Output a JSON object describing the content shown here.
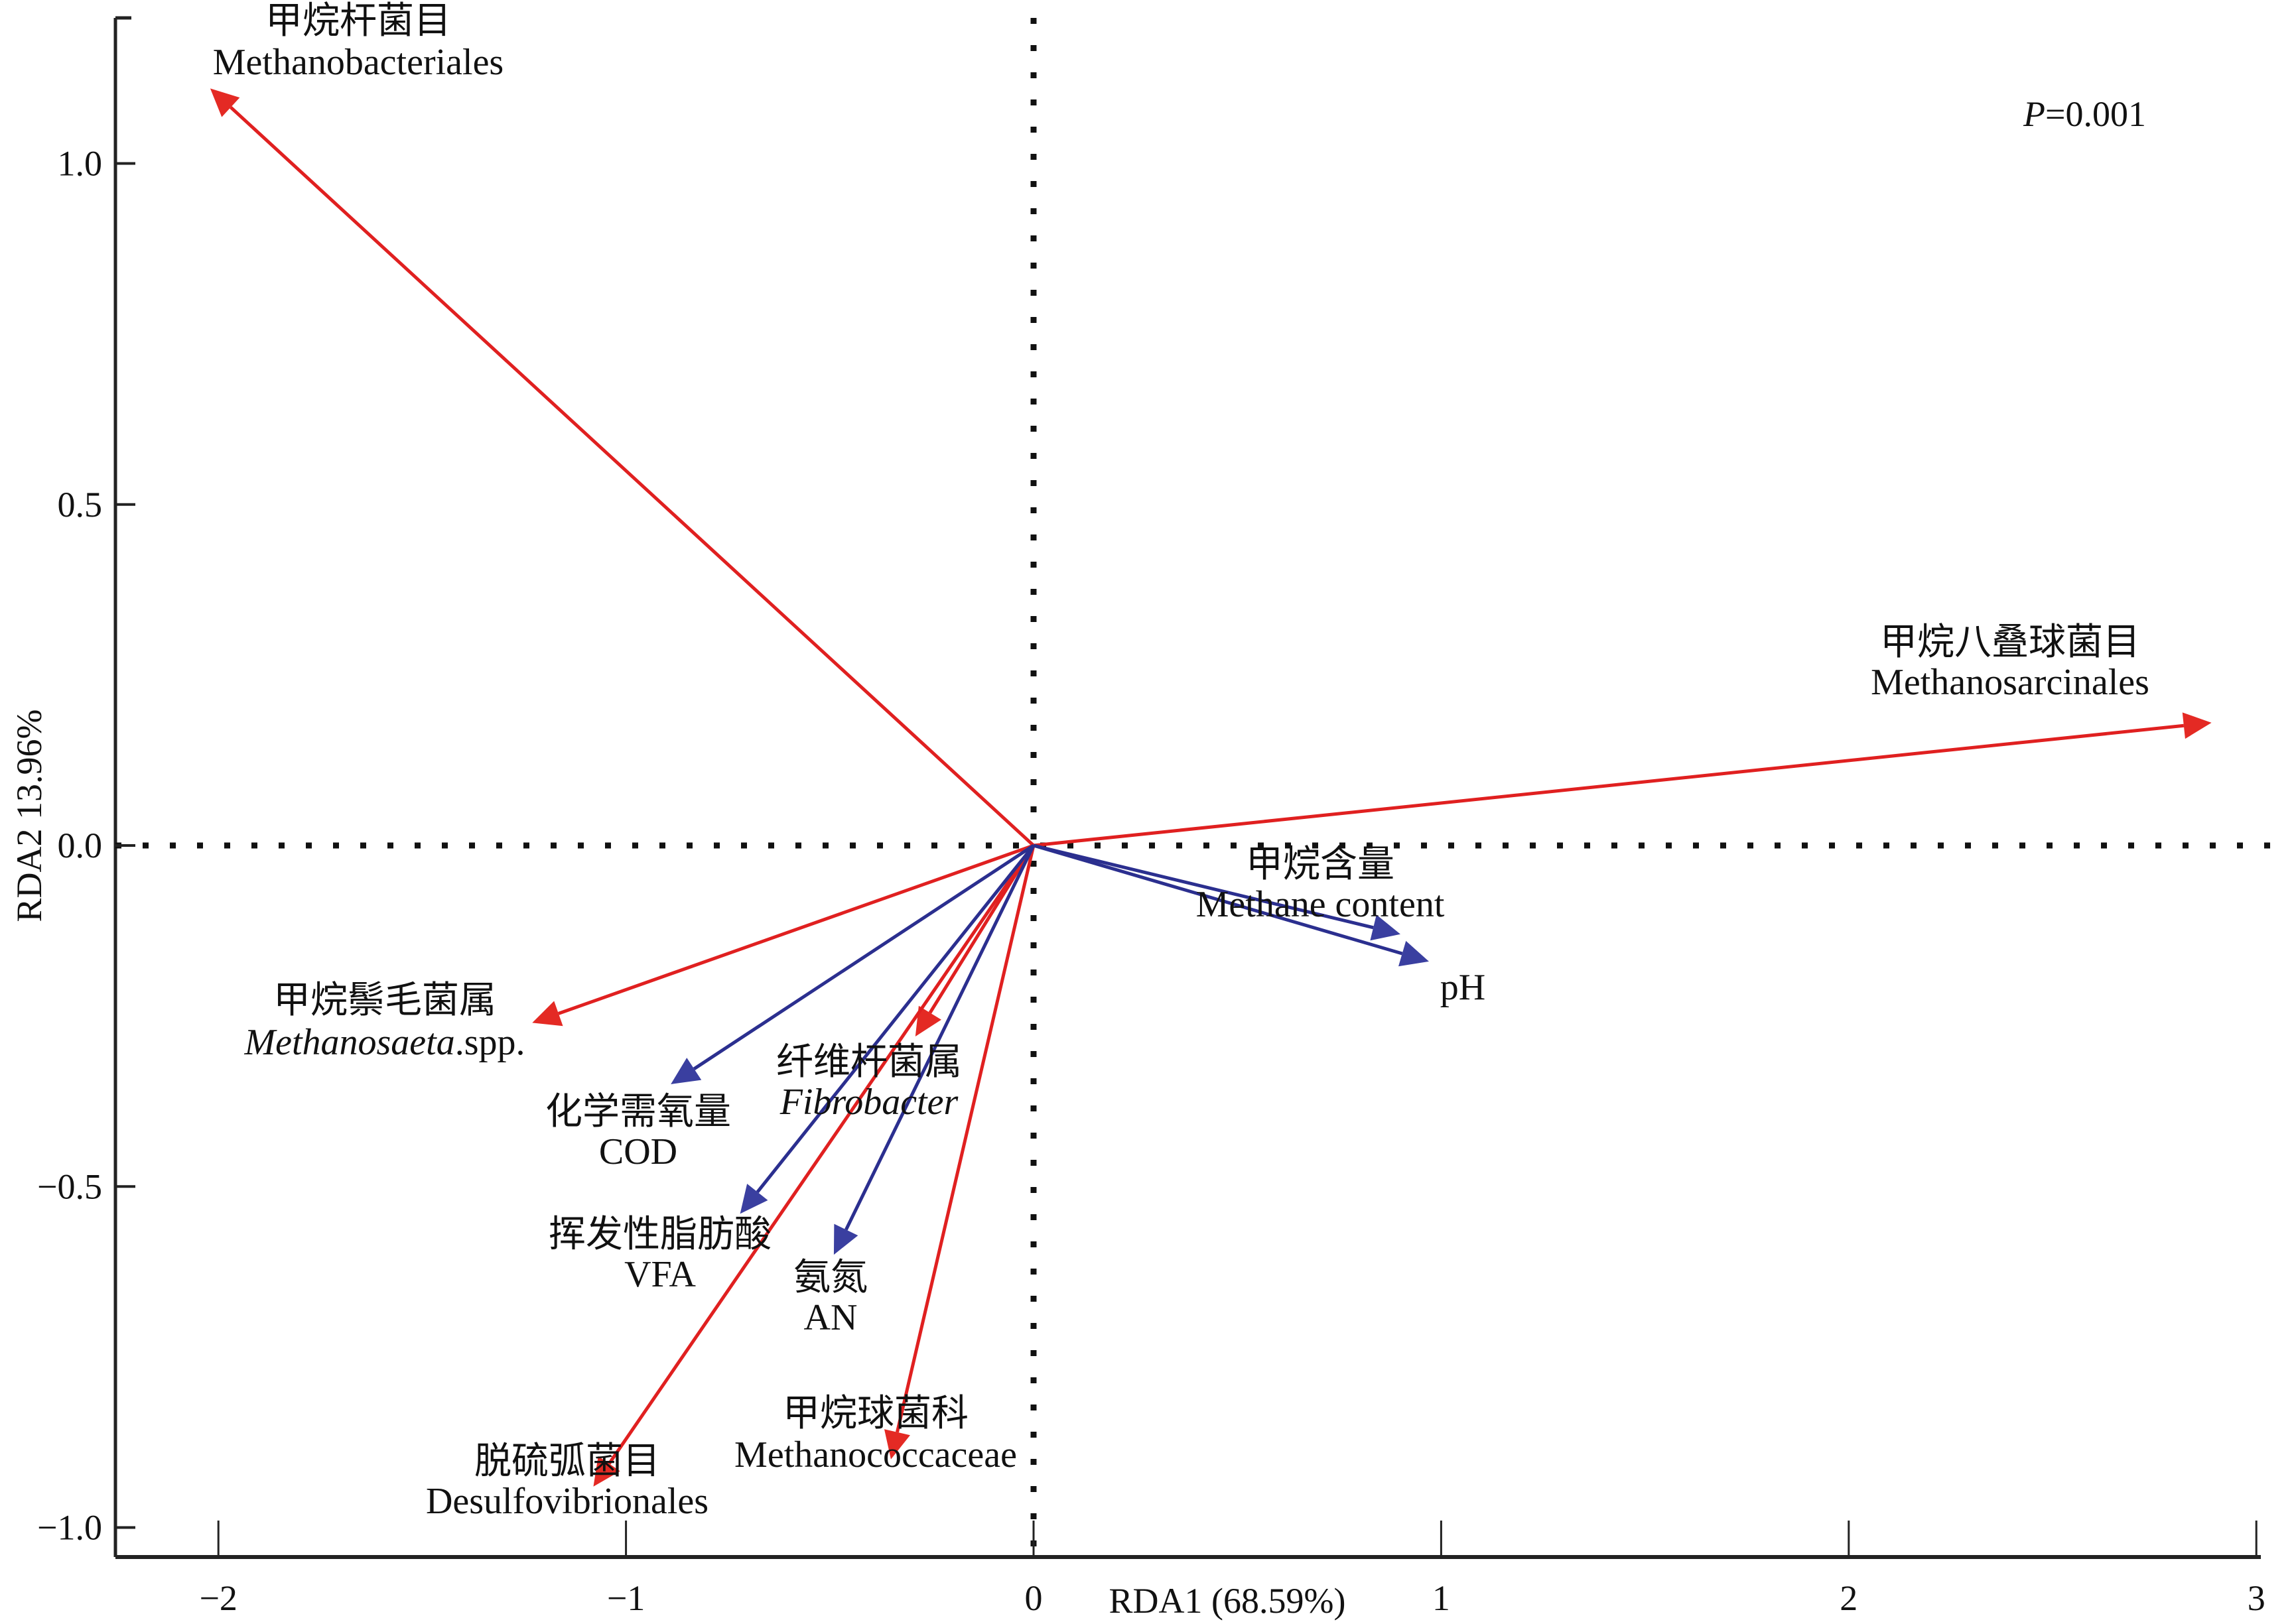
{
  "chart_data": {
    "type": "biplot",
    "title": "",
    "xlabel": "RDA1 (68.59%)",
    "ylabel": "RDA2 13.96%",
    "xlim": [
      -2.25,
      3.02
    ],
    "ylim": [
      -1.08,
      1.22
    ],
    "xticks": [
      -2,
      -1,
      0,
      1,
      2,
      3
    ],
    "xtick_labels": [
      "−2",
      "−1",
      "0",
      "1",
      "2",
      "3"
    ],
    "yticks": [
      1.0,
      0.5,
      0.0,
      -0.5,
      -1.0
    ],
    "ytick_labels": [
      "1.0",
      "0.5",
      "0.0",
      "−0.5",
      "−1.0"
    ],
    "grid": false,
    "reference_lines": "dotted lines at x=0 and y=0",
    "annotation": {
      "italic": "P",
      "rest": "=0.001"
    },
    "colors": {
      "species": "#e02020",
      "environment": "#2b2f8f",
      "axis": "#111111"
    },
    "series": [
      {
        "name": "species",
        "color": "#e02020",
        "arrows": [
          {
            "label_cn": "甲烷杆菌目",
            "label_en": "Methanobacteriales",
            "italic": false,
            "x": -2.02,
            "y": 1.11
          },
          {
            "label_cn": "甲烷八叠球菌目",
            "label_en": "Methanosarcinales",
            "italic": false,
            "x": 2.89,
            "y": 0.18
          },
          {
            "label_cn": "甲烷鬃毛菌属",
            "label_en_italic": "Methanosaeta",
            "label_en_rest": ".spp.",
            "italic": true,
            "x": -1.23,
            "y": -0.26
          },
          {
            "label_cn": "纤维杆菌属",
            "label_en_italic": "Fibrobacter",
            "label_en_rest": "",
            "italic": true,
            "x": -0.29,
            "y": -0.28
          },
          {
            "label_cn": "脱硫弧菌目",
            "label_en": "Desulfovibrionales",
            "italic": false,
            "x": -1.08,
            "y": -0.94
          },
          {
            "label_cn": "甲烷球菌科",
            "label_en": "Methanococcaceae",
            "italic": false,
            "x": -0.35,
            "y": -0.9
          }
        ]
      },
      {
        "name": "environment",
        "color": "#2b2f8f",
        "arrows": [
          {
            "label_cn": "甲烷含量",
            "label_en": "Methane content",
            "x": 0.9,
            "y": -0.13
          },
          {
            "label_cn": "",
            "label_en": "pH",
            "x": 0.97,
            "y": -0.17
          },
          {
            "label_cn": "化学需氧量",
            "label_en": "COD",
            "x": -0.89,
            "y": -0.35
          },
          {
            "label_cn": "挥发性脂肪酸",
            "label_en": "VFA",
            "x": -0.72,
            "y": -0.54
          },
          {
            "label_cn": "氨氮",
            "label_en": "AN",
            "x": -0.49,
            "y": -0.6
          }
        ]
      }
    ]
  }
}
